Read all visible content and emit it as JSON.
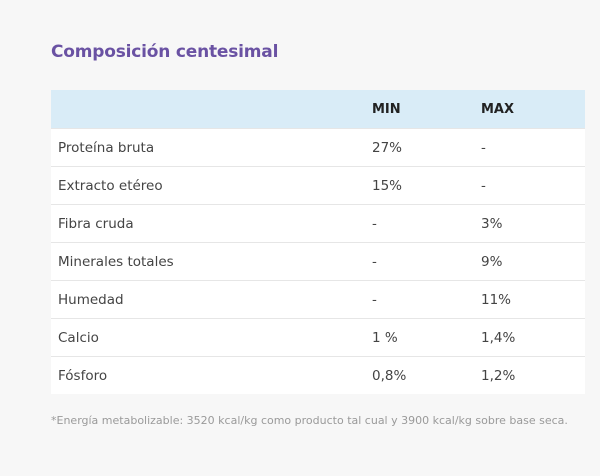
{
  "title": "Composición centesimal",
  "table": {
    "headers": [
      "",
      "MIN",
      "MAX"
    ],
    "rows": [
      [
        "Proteína bruta",
        "27%",
        "-"
      ],
      [
        "Extracto etéreo",
        "15%",
        "-"
      ],
      [
        "Fibra cruda",
        "-",
        "3%"
      ],
      [
        "Minerales totales",
        "-",
        "9%"
      ],
      [
        "Humedad",
        "-",
        "11%"
      ],
      [
        "Calcio",
        "1 %",
        "1,4%"
      ],
      [
        "Fósforo",
        "0,8%",
        "1,2%"
      ]
    ]
  },
  "footnote": "*Energía metabolizable: 3520 kcal/kg como producto tal cual y 3900 kcal/kg sobre base seca."
}
